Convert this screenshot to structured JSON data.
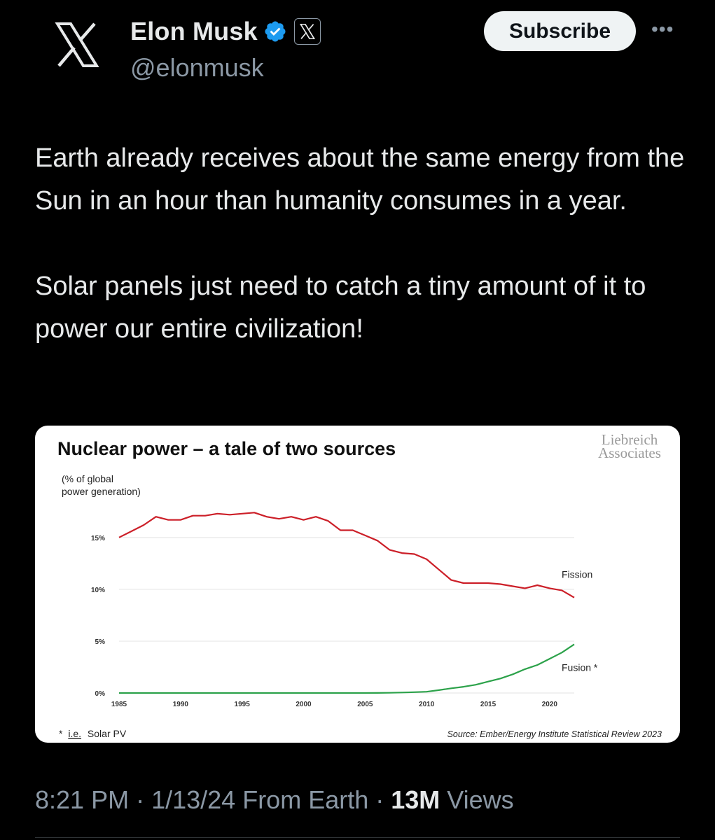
{
  "author": {
    "name": "Elon Musk",
    "handle": "@elonmusk",
    "subscribe_label": "Subscribe",
    "more_label": "•••",
    "verified_color": "#1d9bf0"
  },
  "tweet": {
    "text": "Earth already receives about the same energy from the Sun in an hour than humanity consumes in a year.\n\nSolar panels just need to catch a tiny amount of it to power our entire civilization!"
  },
  "meta": {
    "time": "8:21 PM",
    "sep1": " · ",
    "date": "1/13/24",
    "source": " From Earth",
    "sep2": " · ",
    "views_count": "13M",
    "views_label": " Views"
  },
  "chart_data": {
    "type": "line",
    "title": "Nuclear power – a tale of two sources",
    "ylabel_line1": "(% of global",
    "ylabel_line2": "power generation)",
    "watermark_line1": "Liebreich",
    "watermark_line2": "Associates",
    "footnote_star": "*",
    "footnote_ie": "i.e.",
    "footnote_rest": "Solar PV",
    "source": "Source: Ember/Energy Institute Statistical Review 2023",
    "xlim": [
      1985,
      2022
    ],
    "ylim": [
      0,
      15.8
    ],
    "x_ticks": [
      "1985",
      "1990",
      "1995",
      "2000",
      "2005",
      "2010",
      "2015",
      "2020"
    ],
    "y_ticks": [
      {
        "value": 0,
        "label": "0%"
      },
      {
        "value": 5,
        "label": "5%"
      },
      {
        "value": 10,
        "label": "10%"
      },
      {
        "value": 15,
        "label": "15%"
      }
    ],
    "grid": true,
    "x": [
      1985,
      1986,
      1987,
      1988,
      1989,
      1990,
      1991,
      1992,
      1993,
      1994,
      1995,
      1996,
      1997,
      1998,
      1999,
      2000,
      2001,
      2002,
      2003,
      2004,
      2005,
      2006,
      2007,
      2008,
      2009,
      2010,
      2011,
      2012,
      2013,
      2014,
      2015,
      2016,
      2017,
      2018,
      2019,
      2020,
      2021,
      2022
    ],
    "series": [
      {
        "name": "Fission",
        "color": "#cc1f28",
        "values": [
          15.0,
          15.6,
          16.2,
          17.0,
          16.7,
          16.7,
          17.1,
          17.1,
          17.3,
          17.2,
          17.3,
          17.4,
          17.0,
          16.8,
          17.0,
          16.7,
          17.0,
          16.6,
          15.7,
          15.7,
          15.2,
          14.7,
          13.8,
          13.5,
          13.4,
          12.9,
          11.9,
          10.9,
          10.6,
          10.6,
          10.6,
          10.5,
          10.3,
          10.1,
          10.4,
          10.1,
          9.9,
          9.2
        ]
      },
      {
        "name": "Fusion *",
        "color": "#2ca24a",
        "values": [
          0,
          0,
          0,
          0,
          0,
          0,
          0,
          0,
          0,
          0,
          0,
          0,
          0,
          0,
          0,
          0,
          0,
          0,
          0,
          0,
          0,
          0.01,
          0.02,
          0.05,
          0.08,
          0.12,
          0.28,
          0.45,
          0.6,
          0.8,
          1.1,
          1.4,
          1.8,
          2.3,
          2.7,
          3.3,
          3.9,
          4.7
        ]
      }
    ]
  }
}
